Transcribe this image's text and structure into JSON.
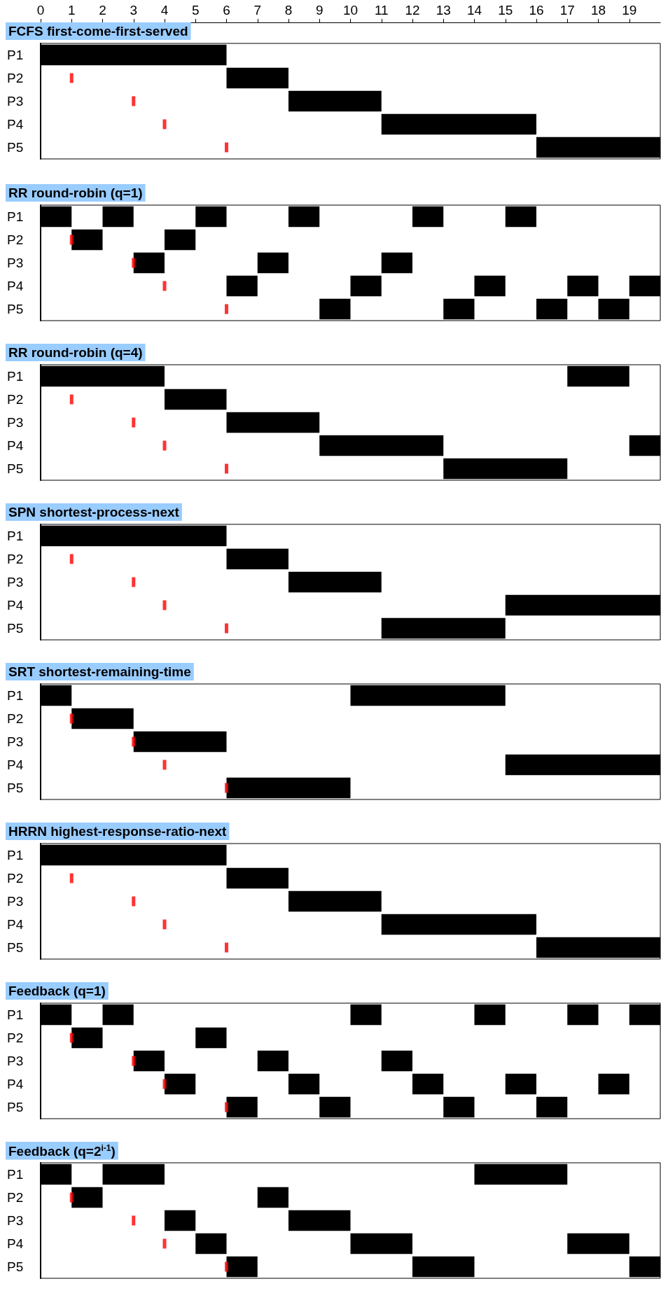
{
  "chart_data": [
    {
      "type": "bar",
      "orientation": "horizontal",
      "title": "FCFS first-come-first-served",
      "categories": [
        "P1",
        "P2",
        "P3",
        "P4",
        "P5"
      ],
      "xlim": [
        0,
        20
      ],
      "xticks": [
        0,
        1,
        2,
        3,
        4,
        5,
        6,
        7,
        8,
        9,
        10,
        11,
        12,
        13,
        14,
        15,
        16,
        17,
        18,
        19
      ],
      "series": [
        {
          "color": "#000000",
          "base": [
            0,
            6,
            8,
            11,
            16
          ],
          "values": [
            6,
            2,
            3,
            5,
            4
          ]
        },
        {
          "type": "scatter",
          "color": "#ff0000",
          "values": [
            null,
            1,
            3,
            4,
            6
          ]
        }
      ]
    },
    {
      "type": "bar",
      "orientation": "horizontal",
      "title": "RR round-robin (q=1)",
      "categories": [
        "P1",
        "P2",
        "P3",
        "P4",
        "P5"
      ],
      "xlim": [
        0,
        20
      ],
      "xticks": [
        0,
        1,
        2,
        3,
        4,
        5,
        6,
        7,
        8,
        9,
        10,
        11,
        12,
        13,
        14,
        15,
        16,
        17,
        18,
        19
      ],
      "tick_labels": "y",
      "series": [
        {
          "color": "#000000",
          "base": [
            0,
            1,
            3,
            6,
            9
          ],
          "values": [
            1,
            1,
            1,
            1,
            1
          ]
        },
        {
          "color": "#000000",
          "base": [
            2,
            4,
            7,
            10,
            13
          ],
          "values": [
            1,
            1,
            1,
            1,
            1
          ]
        },
        {
          "color": "#000000",
          "base": [
            5,
            null,
            11,
            14,
            16
          ],
          "values": [
            1,
            null,
            1,
            1,
            1
          ]
        },
        {
          "color": "#000000",
          "base": [
            8,
            null,
            null,
            17,
            18
          ],
          "values": [
            1,
            null,
            null,
            1,
            1
          ]
        },
        {
          "color": "#000000",
          "base": [
            12,
            null,
            null,
            19,
            null
          ],
          "values": [
            1,
            null,
            null,
            1,
            null
          ]
        },
        {
          "color": "#000000",
          "base": [
            15,
            null,
            null,
            null,
            null
          ],
          "values": [
            1,
            null,
            null,
            null,
            null
          ]
        },
        {
          "type": "scatter",
          "color": "#ff0000",
          "values": [
            null,
            1,
            3,
            4,
            6
          ]
        }
      ]
    },
    {
      "type": "bar",
      "orientation": "horizontal",
      "title": "RR round-robin (q=4)",
      "categories": [
        "P1",
        "P2",
        "P3",
        "P4",
        "P5"
      ],
      "xlim": [
        0,
        20
      ],
      "xticks": [
        0,
        1,
        2,
        3,
        4,
        5,
        6,
        7,
        8,
        9,
        10,
        11,
        12,
        13,
        14,
        15,
        16,
        17,
        18,
        19
      ],
      "tick_labels": "y",
      "series": [
        {
          "color": "#000000",
          "base": [
            0,
            4,
            6,
            9,
            13
          ],
          "values": [
            4,
            2,
            3,
            4,
            4
          ]
        },
        {
          "color": "#000000",
          "base": [
            17,
            null,
            null,
            19,
            null
          ],
          "values": [
            2,
            null,
            null,
            1,
            null
          ]
        },
        {
          "type": "scatter",
          "color": "#ff0000",
          "values": [
            null,
            1,
            3,
            4,
            6
          ]
        }
      ]
    },
    {
      "type": "bar",
      "orientation": "horizontal",
      "title": "SPN shortest-process-next",
      "categories": [
        "P1",
        "P2",
        "P3",
        "P4",
        "P5"
      ],
      "xlim": [
        0,
        20
      ],
      "xticks": [
        0,
        1,
        2,
        3,
        4,
        5,
        6,
        7,
        8,
        9,
        10,
        11,
        12,
        13,
        14,
        15,
        16,
        17,
        18,
        19
      ],
      "tick_labels": "y",
      "series": [
        {
          "color": "#000000",
          "base": [
            0,
            6,
            8,
            15,
            11
          ],
          "values": [
            6,
            2,
            3,
            5,
            4
          ]
        },
        {
          "type": "scatter",
          "color": "#ff0000",
          "values": [
            null,
            1,
            3,
            4,
            6
          ]
        }
      ]
    },
    {
      "type": "bar",
      "orientation": "horizontal",
      "title": "SRT shortest-remaining-time",
      "categories": [
        "P1",
        "P2",
        "P3",
        "P4",
        "P5"
      ],
      "xlim": [
        0,
        20
      ],
      "xticks": [
        0,
        1,
        2,
        3,
        4,
        5,
        6,
        7,
        8,
        9,
        10,
        11,
        12,
        13,
        14,
        15,
        16,
        17,
        18,
        19
      ],
      "tick_labels": "y",
      "series": [
        {
          "color": "#000000",
          "base": [
            0,
            1,
            3,
            15,
            6
          ],
          "values": [
            1,
            2,
            3,
            5,
            4
          ]
        },
        {
          "color": "#000000",
          "base": [
            10,
            null,
            null,
            null,
            null
          ],
          "values": [
            5,
            null,
            null,
            null,
            null
          ]
        },
        {
          "type": "scatter",
          "color": "#ff0000",
          "values": [
            null,
            1,
            3,
            4,
            6
          ]
        }
      ]
    },
    {
      "type": "bar",
      "orientation": "horizontal",
      "title": "HRRN highest-response-ratio-next",
      "categories": [
        "P1",
        "P2",
        "P3",
        "P4",
        "P5"
      ],
      "xlim": [
        0,
        20
      ],
      "xticks": [
        0,
        1,
        2,
        3,
        4,
        5,
        6,
        7,
        8,
        9,
        10,
        11,
        12,
        13,
        14,
        15,
        16,
        17,
        18,
        19
      ],
      "tick_labels": "y",
      "series": [
        {
          "color": "#000000",
          "base": [
            0,
            6,
            8,
            11,
            16
          ],
          "values": [
            6,
            2,
            3,
            5,
            4
          ]
        },
        {
          "type": "scatter",
          "color": "#ff0000",
          "values": [
            null,
            1,
            3,
            4,
            6
          ]
        }
      ]
    },
    {
      "type": "bar",
      "orientation": "horizontal",
      "title": "Feedback (q=1)",
      "categories": [
        "P1",
        "P2",
        "P3",
        "P4",
        "P5"
      ],
      "xlim": [
        0,
        20
      ],
      "xticks": [
        0,
        1,
        2,
        3,
        4,
        5,
        6,
        7,
        8,
        9,
        10,
        11,
        12,
        13,
        14,
        15,
        16,
        17,
        18,
        19
      ],
      "tick_labels": "y",
      "series": [
        {
          "color": "#000000",
          "base": [
            0,
            1,
            3,
            4,
            6
          ],
          "values": [
            1,
            1,
            1,
            1,
            1
          ]
        },
        {
          "color": "#000000",
          "base": [
            2,
            5,
            7,
            8,
            9
          ],
          "values": [
            1,
            1,
            1,
            1,
            1
          ]
        },
        {
          "color": "#000000",
          "base": [
            10,
            null,
            11,
            12,
            13
          ],
          "values": [
            1,
            null,
            1,
            1,
            1
          ]
        },
        {
          "color": "#000000",
          "base": [
            14,
            null,
            null,
            15,
            16
          ],
          "values": [
            1,
            null,
            null,
            1,
            1
          ]
        },
        {
          "color": "#000000",
          "base": [
            17,
            null,
            null,
            18,
            null
          ],
          "values": [
            1,
            null,
            null,
            1,
            null
          ]
        },
        {
          "color": "#000000",
          "base": [
            19,
            null,
            null,
            null,
            null
          ],
          "values": [
            1,
            null,
            null,
            null,
            null
          ]
        },
        {
          "type": "scatter",
          "color": "#ff0000",
          "values": [
            null,
            1,
            3,
            4,
            6
          ]
        }
      ]
    },
    {
      "type": "bar",
      "orientation": "horizontal",
      "title": "Feedback (q=2$^{i-1}$)",
      "categories": [
        "P1",
        "P2",
        "P3",
        "P4",
        "P5"
      ],
      "xlim": [
        0,
        20
      ],
      "xticks": [
        0,
        1,
        2,
        3,
        4,
        5,
        6,
        7,
        8,
        9,
        10,
        11,
        12,
        13,
        14,
        15,
        16,
        17,
        18,
        19
      ],
      "tick_labels": "y",
      "series": [
        {
          "color": "#000000",
          "base": [
            0,
            1,
            4,
            5,
            6
          ],
          "values": [
            1,
            1,
            1,
            1,
            1
          ]
        },
        {
          "color": "#000000",
          "base": [
            2,
            7,
            8,
            10,
            12
          ],
          "values": [
            2,
            1,
            2,
            2,
            2
          ]
        },
        {
          "color": "#000000",
          "base": [
            14,
            null,
            null,
            17,
            19
          ],
          "values": [
            3,
            null,
            null,
            2,
            1
          ]
        },
        {
          "type": "scatter",
          "color": "#ff0000",
          "values": [
            null,
            1,
            3,
            4,
            6
          ]
        }
      ]
    }
  ]
}
